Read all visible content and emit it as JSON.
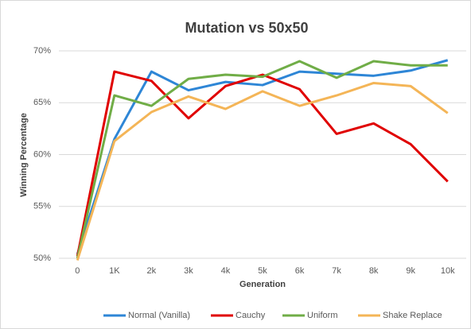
{
  "chart_data": {
    "type": "line",
    "title": "Mutation vs 50x50",
    "x_label": "Generation",
    "y_label": "Winning Percentage",
    "categories": [
      "0",
      "1K",
      "2k",
      "3k",
      "4k",
      "5k",
      "6k",
      "7k",
      "8k",
      "9k",
      "10k"
    ],
    "ylim": [
      50,
      70
    ],
    "yticks": [
      {
        "value": 50,
        "label": "50%"
      },
      {
        "value": 55,
        "label": "55%"
      },
      {
        "value": 60,
        "label": "60%"
      },
      {
        "value": 65,
        "label": "65%"
      },
      {
        "value": 70,
        "label": "70%"
      }
    ],
    "grid": true,
    "legend": "bottom",
    "series": [
      {
        "name": "Normal (Vanilla)",
        "color": "#2e86d6",
        "values": [
          50.4,
          61.5,
          68.0,
          66.2,
          67.0,
          66.7,
          68.0,
          67.8,
          67.6,
          68.1,
          69.1
        ]
      },
      {
        "name": "Cauchy",
        "color": "#e00000",
        "values": [
          50.2,
          68.0,
          67.1,
          63.5,
          66.6,
          67.7,
          66.3,
          62.0,
          63.0,
          61.0,
          57.4
        ]
      },
      {
        "name": "Uniform",
        "color": "#70ad47",
        "values": [
          50.0,
          65.7,
          64.7,
          67.3,
          67.7,
          67.5,
          69.0,
          67.4,
          69.0,
          68.6,
          68.6
        ]
      },
      {
        "name": "Shake Replace",
        "color": "#f4b557",
        "values": [
          49.8,
          61.3,
          64.1,
          65.6,
          64.4,
          66.1,
          64.7,
          65.7,
          66.9,
          66.6,
          64.0
        ]
      }
    ]
  }
}
